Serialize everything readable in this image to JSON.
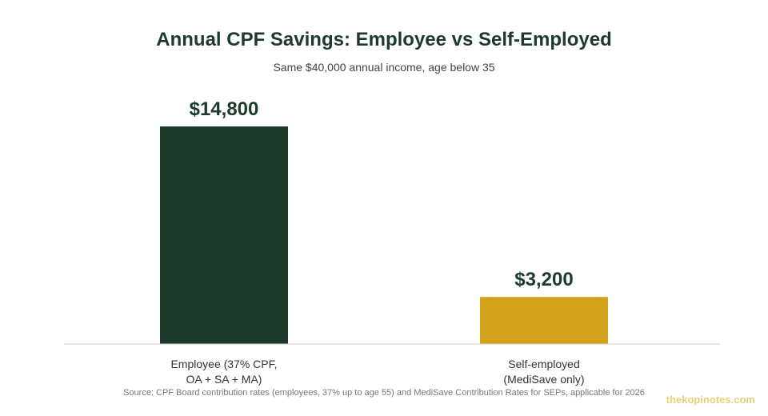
{
  "chart_data": {
    "type": "bar",
    "title": "Annual CPF Savings: Employee vs Self-Employed",
    "subtitle": "Same $40,000 annual income, age below 35",
    "categories": [
      [
        "Employee (37% CPF,",
        "OA + SA + MA)"
      ],
      [
        "Self-employed",
        "(MediSave only)"
      ]
    ],
    "values": [
      14800,
      3200
    ],
    "value_labels": [
      "$14,800",
      "$3,200"
    ],
    "colors": [
      "#1c3b2b",
      "#d4a11a"
    ],
    "ylim": [
      0,
      16000
    ],
    "grid": false
  },
  "source": "Source: CPF Board contribution rates (employees, 37% up to age 55) and MediSave Contribution Rates for SEPs, applicable for 2026",
  "watermark": "thekopinotes.com"
}
